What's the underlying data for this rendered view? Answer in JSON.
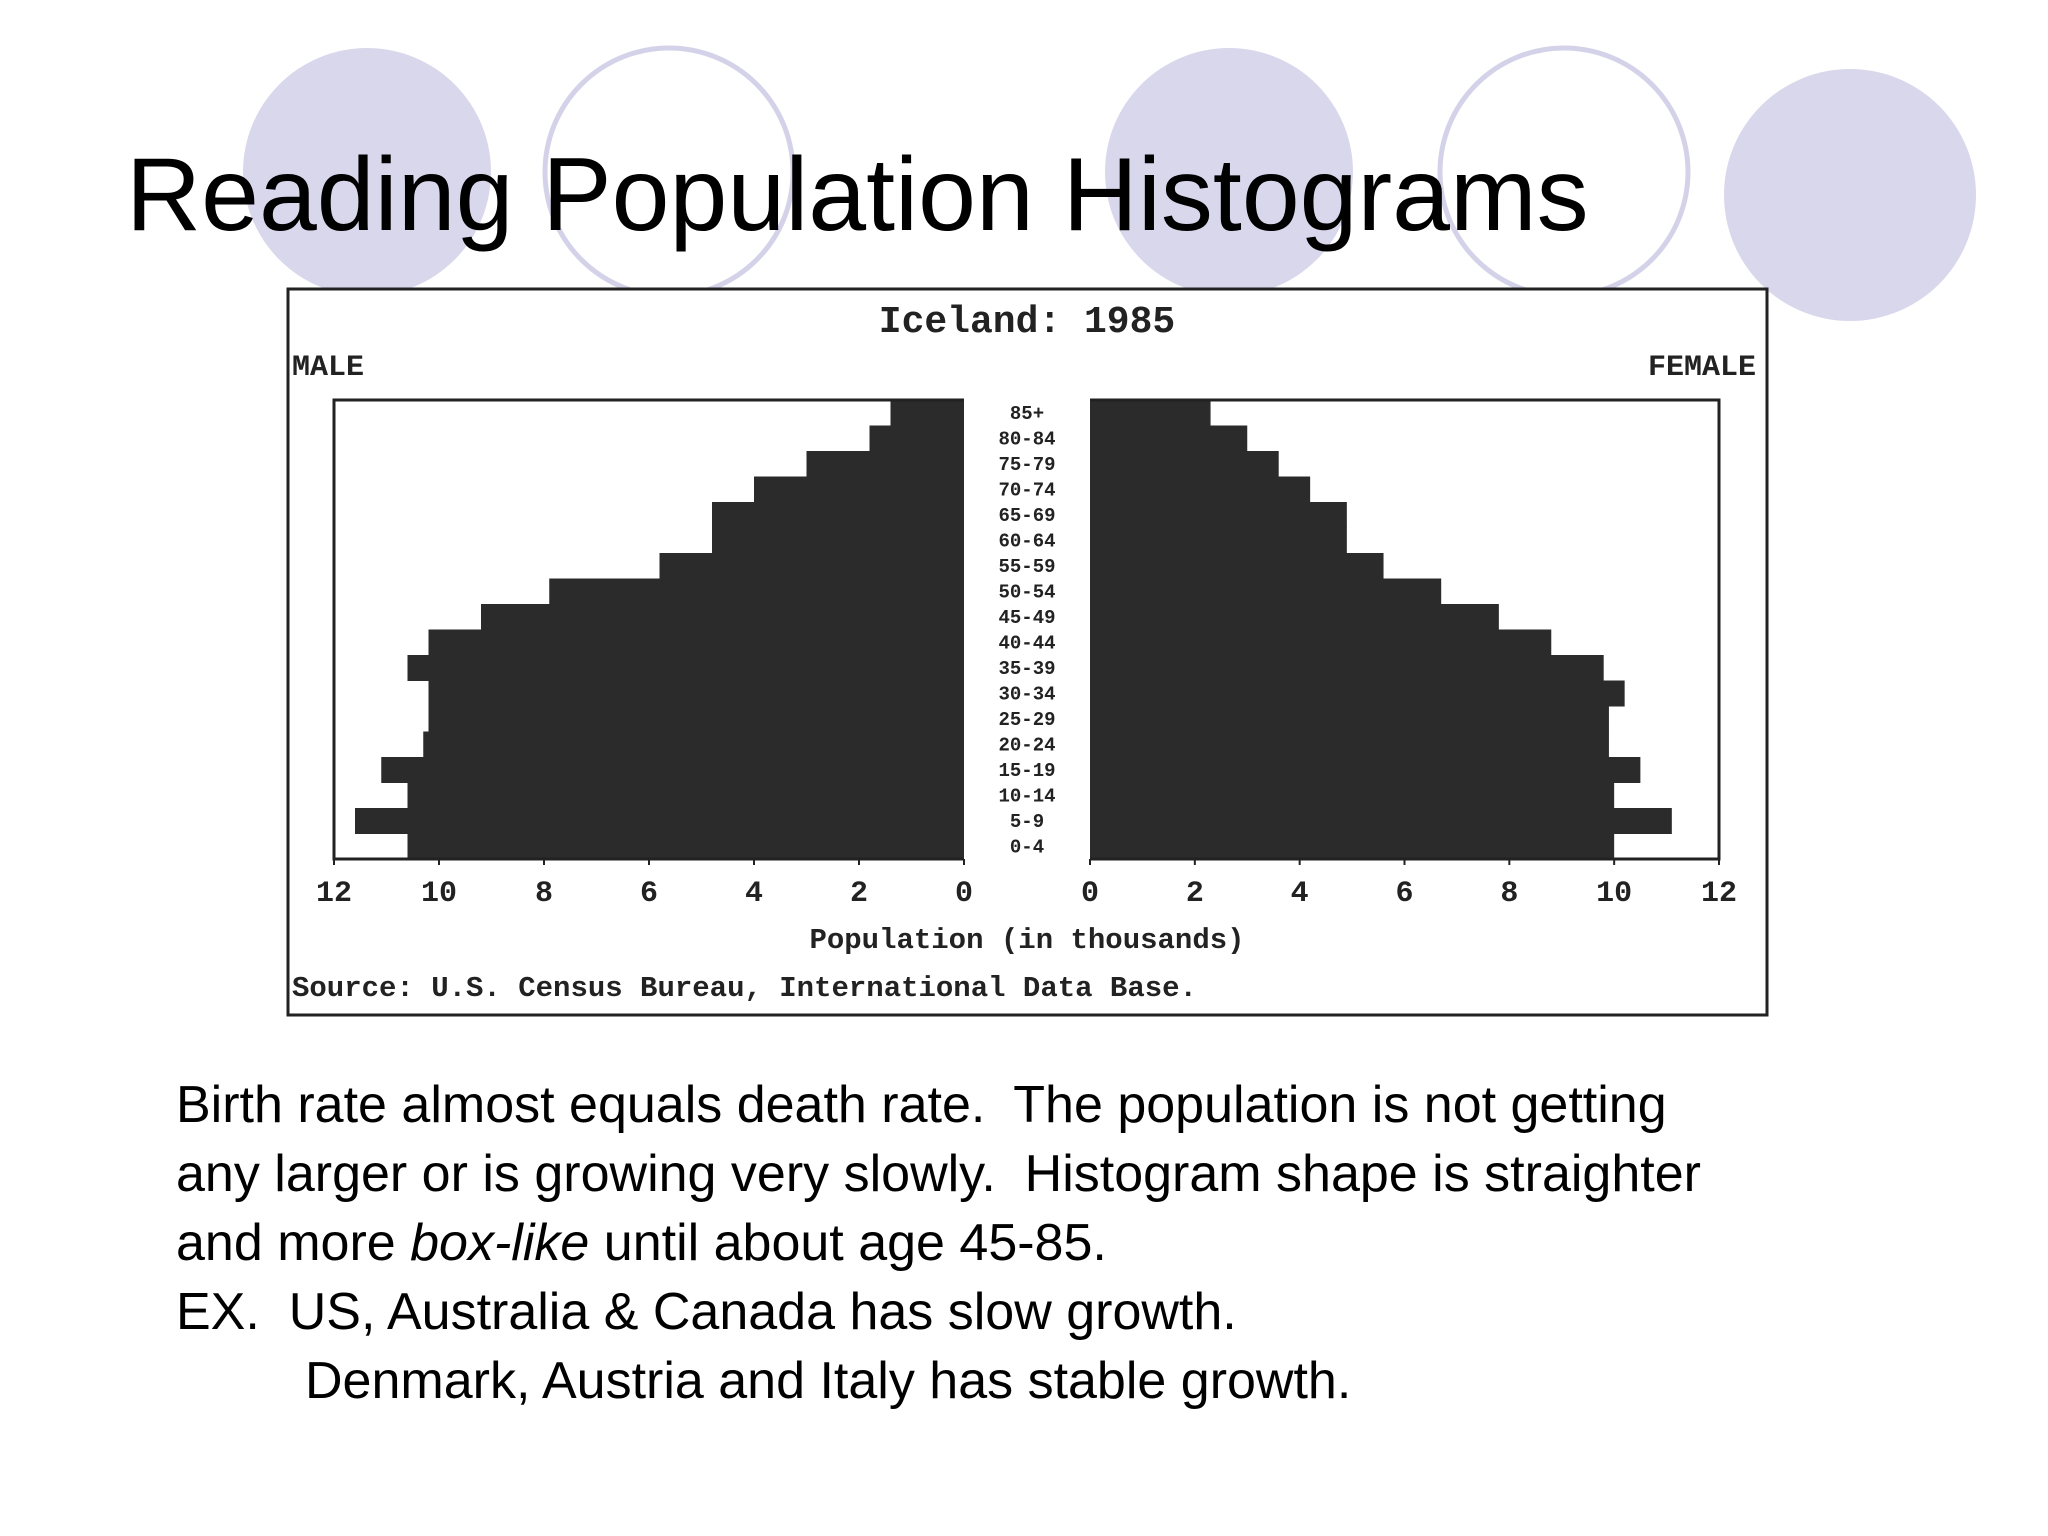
{
  "slide": {
    "title": "Reading Population Histograms",
    "body": [
      "Birth rate almost equals death rate.  The population is not getting",
      "any larger or is growing very slowly.  Histogram shape is straighter",
      [
        "and more ",
        "box-like",
        " until about age 45-85."
      ],
      "EX.  US, Australia & Canada has slow growth.",
      "Denmark, Austria and Italy has stable growth."
    ]
  },
  "chart_data": {
    "type": "population-pyramid",
    "title": "Iceland: 1985",
    "categories": [
      "85+",
      "80-84",
      "75-79",
      "70-74",
      "65-69",
      "60-64",
      "55-59",
      "50-54",
      "45-49",
      "40-44",
      "35-39",
      "30-34",
      "25-29",
      "20-24",
      "15-19",
      "10-14",
      "5-9",
      "0-4"
    ],
    "series": [
      {
        "name": "MALE",
        "color": "#2b2b2b",
        "values": [
          1.4,
          1.8,
          3.0,
          4.0,
          4.8,
          4.8,
          5.8,
          7.9,
          9.2,
          10.2,
          10.6,
          10.2,
          10.2,
          10.3,
          11.1,
          10.6,
          11.6,
          10.6
        ]
      },
      {
        "name": "FEMALE",
        "color": "#2b2b2b",
        "values": [
          2.3,
          3.0,
          3.6,
          4.2,
          4.9,
          4.9,
          5.6,
          6.7,
          7.8,
          8.8,
          9.8,
          10.2,
          9.9,
          9.9,
          10.5,
          10.0,
          11.1,
          10.0
        ]
      }
    ],
    "xlabel": "Population (in thousands)",
    "source": "Source: U.S. Census Bureau, International Data Base.",
    "xlim": [
      0,
      12
    ],
    "xticks": [
      0,
      2,
      4,
      6,
      8,
      10,
      12
    ]
  }
}
